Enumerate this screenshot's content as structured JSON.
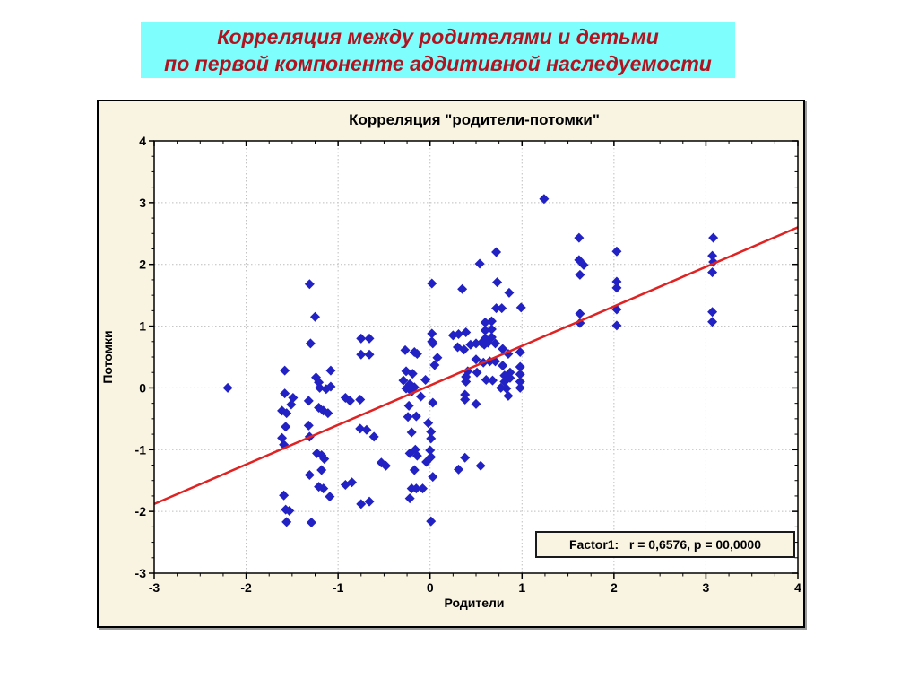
{
  "slide": {
    "banner": {
      "line1": "Корреляция между родителями и детьми",
      "line2": "по первой компоненте аддитивной наследуемости",
      "bg_color": "#7FFEFE",
      "text_color": "#B01420"
    }
  },
  "chart_data": {
    "type": "scatter",
    "title": "Корреляция \"родители-потомки\"",
    "xlabel": "Родители",
    "ylabel": "Потомки",
    "annotation": "Factor1:   r = 0,6576, p = 00,0000",
    "xlim": [
      -3,
      4
    ],
    "ylim": [
      -3,
      4
    ],
    "x_ticks": [
      -3,
      -2,
      -1,
      0,
      1,
      2,
      3,
      4
    ],
    "y_ticks": [
      -3,
      -2,
      -1,
      0,
      1,
      2,
      3,
      4
    ],
    "minor_tick_step": 0.25,
    "grid": "dotted",
    "legend_position": "none",
    "colors": {
      "figure_bg": "#F9F4E2",
      "plot_bg": "#FFFFFF",
      "marker": "#2222C4",
      "regression": "#E02222",
      "grid": "#BEBEBE",
      "axis": "#000000"
    },
    "marker_shape": "diamond",
    "regression_line": {
      "x1": -3,
      "y1": -1.88,
      "x2": 4,
      "y2": 2.6
    },
    "points": [
      [
        -2.2,
        0.0
      ],
      [
        -1.31,
        1.68
      ],
      [
        -1.25,
        1.15
      ],
      [
        -1.3,
        0.72
      ],
      [
        -1.58,
        0.28
      ],
      [
        -1.24,
        0.17
      ],
      [
        -1.21,
        0.09
      ],
      [
        -1.2,
        0.0
      ],
      [
        -1.13,
        -0.02
      ],
      [
        -1.08,
        0.02
      ],
      [
        -1.08,
        0.28
      ],
      [
        -1.58,
        -0.09
      ],
      [
        -1.49,
        -0.16
      ],
      [
        -1.51,
        -0.27
      ],
      [
        -1.32,
        -0.21
      ],
      [
        -1.61,
        -0.37
      ],
      [
        -1.56,
        -0.41
      ],
      [
        -1.21,
        -0.32
      ],
      [
        -1.16,
        -0.37
      ],
      [
        -1.11,
        -0.41
      ],
      [
        -1.57,
        -0.63
      ],
      [
        -1.32,
        -0.61
      ],
      [
        -1.61,
        -0.81
      ],
      [
        -1.31,
        -0.79
      ],
      [
        -1.59,
        -0.92
      ],
      [
        -1.23,
        -1.06
      ],
      [
        -1.18,
        -1.09
      ],
      [
        -1.15,
        -1.15
      ],
      [
        -1.18,
        -1.33
      ],
      [
        -1.31,
        -1.41
      ],
      [
        -1.21,
        -1.6
      ],
      [
        -1.16,
        -1.63
      ],
      [
        -1.09,
        -1.76
      ],
      [
        -1.59,
        -1.74
      ],
      [
        -1.57,
        -1.97
      ],
      [
        -1.53,
        -1.99
      ],
      [
        -1.56,
        -2.17
      ],
      [
        -1.29,
        -2.18
      ],
      [
        -0.92,
        -0.16
      ],
      [
        -0.87,
        -0.21
      ],
      [
        -0.76,
        -0.19
      ],
      [
        -0.76,
        -0.66
      ],
      [
        -0.69,
        -0.68
      ],
      [
        -0.92,
        -1.57
      ],
      [
        -0.85,
        -1.53
      ],
      [
        -0.75,
        -1.88
      ],
      [
        -0.66,
        -1.84
      ],
      [
        -0.61,
        -0.79
      ],
      [
        -0.75,
        0.8
      ],
      [
        -0.66,
        0.8
      ],
      [
        -0.75,
        0.54
      ],
      [
        -0.66,
        0.54
      ],
      [
        -0.27,
        0.61
      ],
      [
        -0.17,
        0.58
      ],
      [
        -0.14,
        0.55
      ],
      [
        -0.26,
        0.27
      ],
      [
        -0.19,
        0.23
      ],
      [
        -0.29,
        0.12
      ],
      [
        -0.22,
        0.06
      ],
      [
        -0.17,
        0.01
      ],
      [
        -0.26,
        -0.01
      ],
      [
        -0.2,
        -0.06
      ],
      [
        -0.05,
        0.13
      ],
      [
        -0.1,
        -0.14
      ],
      [
        -0.23,
        -0.29
      ],
      [
        -0.24,
        -0.47
      ],
      [
        -0.15,
        -0.46
      ],
      [
        -0.02,
        -0.57
      ],
      [
        -0.2,
        -0.72
      ],
      [
        0.01,
        -0.71
      ],
      [
        0.01,
        -0.82
      ],
      [
        0.03,
        -0.24
      ],
      [
        -0.22,
        -1.06
      ],
      [
        -0.16,
        -1.0
      ],
      [
        -0.14,
        -1.1
      ],
      [
        0.0,
        -1.01
      ],
      [
        0.01,
        -1.12
      ],
      [
        -0.04,
        -1.2
      ],
      [
        -0.53,
        -1.21
      ],
      [
        -0.48,
        -1.26
      ],
      [
        -0.17,
        -1.33
      ],
      [
        0.03,
        -1.44
      ],
      [
        -0.2,
        -1.63
      ],
      [
        -0.15,
        -1.63
      ],
      [
        -0.08,
        -1.63
      ],
      [
        -0.22,
        -1.79
      ],
      [
        0.01,
        -2.16
      ],
      [
        0.02,
        1.69
      ],
      [
        0.02,
        0.88
      ],
      [
        0.02,
        0.75
      ],
      [
        0.03,
        0.72
      ],
      [
        0.08,
        0.49
      ],
      [
        0.05,
        0.37
      ],
      [
        0.35,
        1.6
      ],
      [
        0.25,
        0.85
      ],
      [
        0.31,
        0.87
      ],
      [
        0.39,
        0.9
      ],
      [
        0.3,
        0.66
      ],
      [
        0.37,
        0.62
      ],
      [
        0.44,
        0.7
      ],
      [
        0.5,
        0.72
      ],
      [
        0.5,
        0.46
      ],
      [
        0.41,
        0.27
      ],
      [
        0.51,
        0.25
      ],
      [
        0.39,
        0.18
      ],
      [
        0.39,
        0.1
      ],
      [
        0.38,
        -0.11
      ],
      [
        0.38,
        -0.19
      ],
      [
        0.5,
        -0.26
      ],
      [
        0.38,
        -1.13
      ],
      [
        0.31,
        -1.32
      ],
      [
        0.55,
        -1.26
      ],
      [
        0.54,
        2.01
      ],
      [
        0.72,
        2.2
      ],
      [
        0.73,
        1.71
      ],
      [
        0.86,
        1.54
      ],
      [
        0.72,
        1.29
      ],
      [
        0.78,
        1.29
      ],
      [
        0.99,
        1.3
      ],
      [
        0.6,
        1.06
      ],
      [
        0.67,
        1.08
      ],
      [
        0.6,
        0.93
      ],
      [
        0.67,
        0.95
      ],
      [
        0.6,
        0.8
      ],
      [
        0.67,
        0.82
      ],
      [
        0.59,
        0.7
      ],
      [
        0.56,
        0.73
      ],
      [
        0.63,
        0.73
      ],
      [
        0.71,
        0.72
      ],
      [
        0.79,
        0.63
      ],
      [
        0.85,
        0.55
      ],
      [
        0.98,
        0.58
      ],
      [
        0.58,
        0.41
      ],
      [
        0.65,
        0.43
      ],
      [
        0.71,
        0.43
      ],
      [
        0.61,
        0.13
      ],
      [
        0.68,
        0.12
      ],
      [
        0.81,
        0.2
      ],
      [
        0.87,
        0.16
      ],
      [
        0.81,
        0.1
      ],
      [
        0.77,
        0.0
      ],
      [
        0.83,
        -0.01
      ],
      [
        0.79,
        0.36
      ],
      [
        0.87,
        0.25
      ],
      [
        0.98,
        0.34
      ],
      [
        0.98,
        0.22
      ],
      [
        0.98,
        0.1
      ],
      [
        0.98,
        0.0
      ],
      [
        0.85,
        -0.13
      ],
      [
        1.24,
        3.06
      ],
      [
        1.62,
        2.43
      ],
      [
        1.62,
        2.07
      ],
      [
        1.67,
        1.99
      ],
      [
        1.63,
        1.83
      ],
      [
        1.63,
        1.2
      ],
      [
        1.63,
        1.05
      ],
      [
        2.03,
        2.21
      ],
      [
        2.03,
        1.72
      ],
      [
        2.03,
        1.62
      ],
      [
        2.03,
        1.27
      ],
      [
        2.03,
        1.01
      ],
      [
        3.08,
        2.43
      ],
      [
        3.07,
        2.14
      ],
      [
        3.08,
        2.04
      ],
      [
        3.07,
        1.87
      ],
      [
        3.07,
        1.23
      ],
      [
        3.07,
        1.07
      ]
    ]
  }
}
